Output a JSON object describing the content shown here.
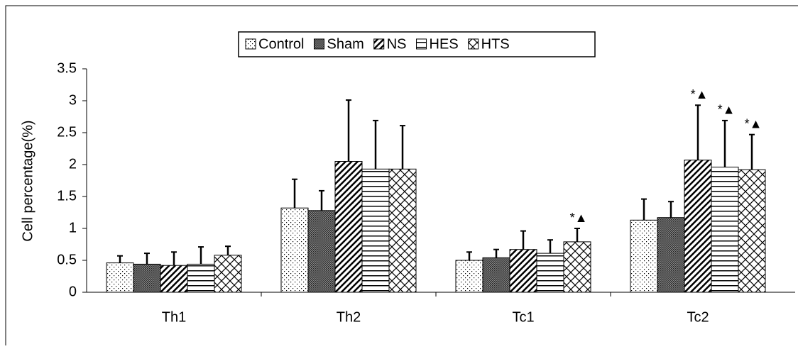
{
  "chart_data": {
    "type": "bar",
    "ylabel": "Cell percentage(%)",
    "categories": [
      "Th1",
      "Th2",
      "Tc1",
      "Tc2"
    ],
    "series": [
      {
        "name": "Control",
        "color": "#000000",
        "pattern": "dots",
        "values": [
          0.46,
          1.32,
          0.5,
          1.13
        ],
        "errors": [
          0.11,
          0.45,
          0.13,
          0.33
        ]
      },
      {
        "name": "Sham",
        "color": "#000000",
        "pattern": "crosshatch",
        "values": [
          0.44,
          1.28,
          0.54,
          1.17
        ],
        "errors": [
          0.17,
          0.31,
          0.13,
          0.25
        ]
      },
      {
        "name": "NS",
        "color": "#000000",
        "pattern": "diagonal",
        "values": [
          0.42,
          2.05,
          0.67,
          2.07
        ],
        "errors": [
          0.21,
          0.96,
          0.29,
          0.86
        ]
      },
      {
        "name": "HES",
        "color": "#000000",
        "pattern": "horizontal",
        "values": [
          0.44,
          1.93,
          0.61,
          1.96
        ],
        "errors": [
          0.27,
          0.76,
          0.21,
          0.73
        ]
      },
      {
        "name": "HTS",
        "color": "#000000",
        "pattern": "wave",
        "values": [
          0.58,
          1.93,
          0.79,
          1.92
        ],
        "errors": [
          0.14,
          0.68,
          0.21,
          0.55
        ]
      }
    ],
    "annotations": [
      {
        "text": "*▲",
        "category": 2,
        "series": 4
      },
      {
        "text": "*▲",
        "category": 3,
        "series": 2
      },
      {
        "text": "*▲",
        "category": 3,
        "series": 3
      },
      {
        "text": "*▲",
        "category": 3,
        "series": 4
      }
    ],
    "ylim": [
      0,
      3.5
    ],
    "yticks": [
      0,
      0.5,
      1,
      1.5,
      2,
      2.5,
      3,
      3.5
    ],
    "legend": "top"
  }
}
